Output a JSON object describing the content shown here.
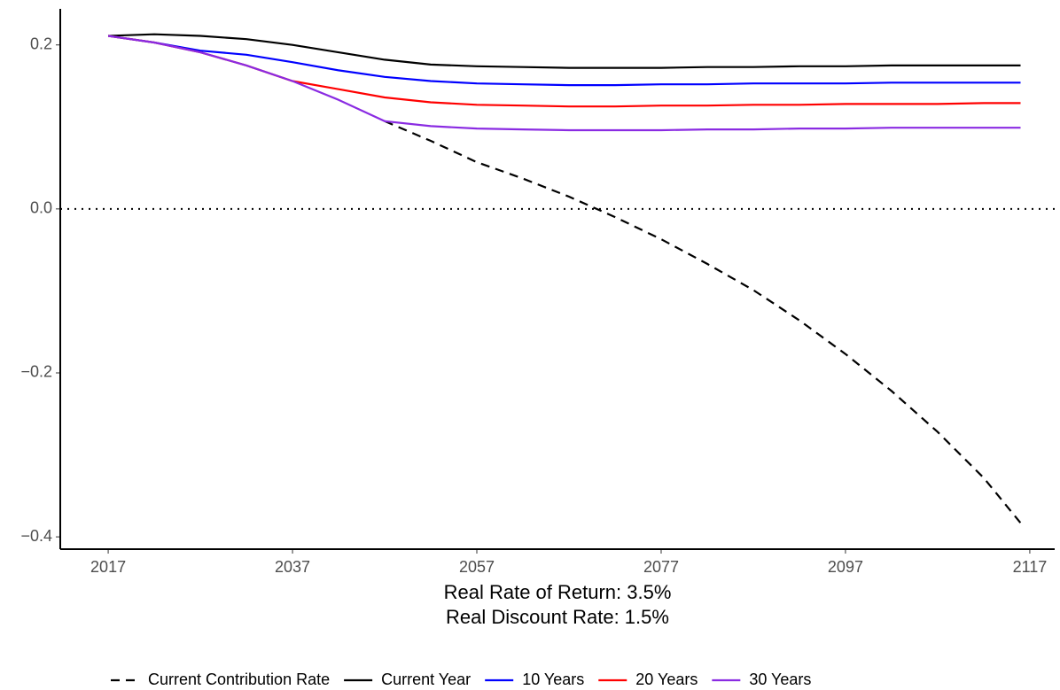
{
  "chart_data": {
    "type": "line",
    "xlabel": [
      "Real Rate of Return: 3.5%",
      "Real Discount Rate: 1.5%"
    ],
    "x": [
      2017,
      2022,
      2027,
      2032,
      2037,
      2042,
      2047,
      2052,
      2057,
      2062,
      2067,
      2072,
      2077,
      2082,
      2087,
      2092,
      2097,
      2102,
      2107,
      2112,
      2116
    ],
    "series": [
      {
        "name": "Current Contribution Rate",
        "color": "#000000",
        "dash": "dashed",
        "values": [
          null,
          null,
          null,
          null,
          null,
          null,
          0.107,
          0.083,
          0.057,
          0.037,
          0.015,
          -0.01,
          -0.037,
          -0.067,
          -0.099,
          -0.136,
          -0.177,
          -0.222,
          -0.272,
          -0.328,
          -0.383
        ]
      },
      {
        "name": "Current Year",
        "color": "#000000",
        "dash": "solid",
        "values": [
          0.211,
          0.213,
          0.211,
          0.207,
          0.2,
          0.191,
          0.182,
          0.176,
          0.174,
          0.173,
          0.172,
          0.172,
          0.172,
          0.173,
          0.173,
          0.174,
          0.174,
          0.175,
          0.175,
          0.175,
          0.175
        ]
      },
      {
        "name": "10 Years",
        "color": "#0000ff",
        "dash": "solid",
        "values": [
          0.211,
          0.203,
          0.193,
          0.188,
          0.179,
          0.169,
          0.161,
          0.156,
          0.153,
          0.152,
          0.151,
          0.151,
          0.152,
          0.152,
          0.153,
          0.153,
          0.153,
          0.154,
          0.154,
          0.154,
          0.154
        ]
      },
      {
        "name": "20 Years",
        "color": "#ff0000",
        "dash": "solid",
        "values": [
          0.211,
          0.203,
          0.191,
          0.175,
          0.156,
          0.146,
          0.136,
          0.13,
          0.127,
          0.126,
          0.125,
          0.125,
          0.126,
          0.126,
          0.127,
          0.127,
          0.128,
          0.128,
          0.128,
          0.129,
          0.129
        ]
      },
      {
        "name": "30 Years",
        "color": "#8a2be2",
        "dash": "solid",
        "values": [
          0.211,
          0.203,
          0.191,
          0.175,
          0.156,
          0.133,
          0.107,
          0.101,
          0.098,
          0.097,
          0.096,
          0.096,
          0.096,
          0.097,
          0.097,
          0.098,
          0.098,
          0.099,
          0.099,
          0.099,
          0.099
        ]
      }
    ],
    "xlim": [
      2011.8,
      2119.7
    ],
    "ylim": [
      -0.415,
      0.244
    ],
    "xticks": [
      2017,
      2037,
      2057,
      2077,
      2097,
      2117
    ],
    "yticks": [
      {
        "value": -0.4,
        "label": "−0.4"
      },
      {
        "value": -0.2,
        "label": "−0.2"
      },
      {
        "value": 0,
        "label": "0.0"
      },
      0.2
    ],
    "hline": 0,
    "grid": false,
    "legend": "bottom"
  }
}
